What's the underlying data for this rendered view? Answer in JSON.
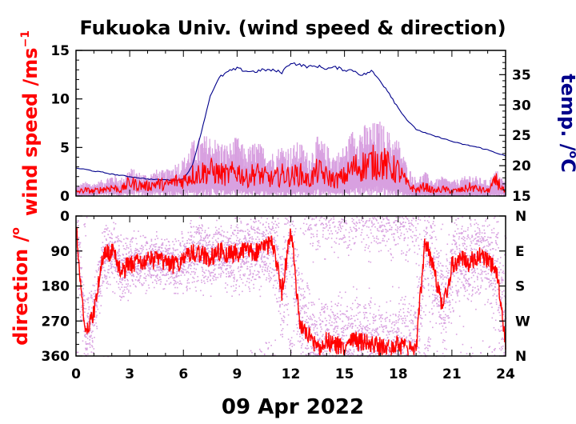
{
  "colors": {
    "wind_mean": "#ff0000",
    "wind_range": "#d8a0e0",
    "temperature": "#00008b",
    "axis": "#000000"
  },
  "chart_data": [
    {
      "type": "line",
      "panel": "top",
      "title": "Fukuoka Univ. (wind speed & direction)",
      "ylabel": "wind speed /ms",
      "ylabel_super": "−1",
      "y2label": "temp. /",
      "y2label_unit": "C",
      "ylim": [
        0,
        15
      ],
      "y2lim": [
        15,
        39
      ],
      "xlim": [
        0,
        24
      ],
      "yticks": [
        0,
        5,
        10,
        15
      ],
      "y2ticks": [
        15,
        20,
        25,
        30,
        35
      ],
      "series": [
        {
          "role": "wind speed (mean)",
          "color": "#ff0000",
          "x": [
            0,
            0.5,
            1,
            1.5,
            2,
            2.5,
            3,
            3.5,
            4,
            4.5,
            5,
            5.5,
            6,
            6.5,
            7,
            7.5,
            8,
            8.5,
            9,
            9.5,
            10,
            10.5,
            11,
            11.5,
            12,
            12.5,
            13,
            13.5,
            14,
            14.5,
            15,
            15.5,
            16,
            16.5,
            17,
            17.5,
            18,
            18.5,
            19,
            19.5,
            20,
            20.5,
            21,
            21.5,
            22,
            22.5,
            23,
            23.5,
            24
          ],
          "values": [
            0.4,
            0.6,
            0.5,
            0.7,
            0.9,
            0.6,
            1.4,
            1.1,
            1.0,
            1.3,
            1.1,
            1.5,
            1.6,
            2.2,
            2.4,
            2.6,
            2.3,
            2.1,
            2.6,
            1.8,
            2.4,
            2.0,
            1.7,
            2.2,
            2.0,
            2.3,
            1.5,
            2.6,
            2.0,
            1.6,
            2.0,
            2.9,
            3.1,
            3.4,
            3.6,
            2.9,
            2.6,
            1.2,
            0.6,
            1.0,
            0.5,
            0.7,
            0.5,
            0.6,
            0.9,
            0.7,
            0.5,
            1.6,
            0.3
          ]
        },
        {
          "role": "wind speed (range)",
          "color": "#d8a0e0",
          "x": [
            0,
            0.5,
            1,
            1.5,
            2,
            2.5,
            3,
            3.5,
            4,
            4.5,
            5,
            5.5,
            6,
            6.5,
            7,
            7.5,
            8,
            8.5,
            9,
            9.5,
            10,
            10.5,
            11,
            11.5,
            12,
            12.5,
            13,
            13.5,
            14,
            14.5,
            15,
            15.5,
            16,
            16.5,
            17,
            17.5,
            18,
            18.5,
            19,
            19.5,
            20,
            20.5,
            21,
            21.5,
            22,
            22.5,
            23,
            23.5,
            24
          ],
          "upper": [
            0.9,
            1.3,
            1.2,
            1.5,
            2.0,
            1.6,
            2.6,
            2.2,
            2.0,
            2.4,
            2.3,
            3.0,
            3.4,
            5.0,
            5.4,
            5.6,
            5.0,
            4.7,
            5.4,
            4.2,
            5.0,
            4.5,
            4.0,
            4.7,
            4.5,
            5.0,
            3.8,
            5.4,
            4.6,
            3.8,
            4.6,
            6.2,
            6.4,
            6.6,
            6.8,
            5.8,
            5.2,
            2.8,
            1.6,
            2.2,
            1.4,
            1.8,
            1.4,
            1.6,
            2.0,
            1.7,
            1.4,
            2.4,
            1.2
          ],
          "lower": [
            0.1,
            0.2,
            0.2,
            0.3,
            0.4,
            0.2,
            0.6,
            0.5,
            0.4,
            0.6,
            0.5,
            0.6,
            0.6,
            0.7,
            0.8,
            0.9,
            0.7,
            0.6,
            0.8,
            0.5,
            0.7,
            0.6,
            0.5,
            0.6,
            0.6,
            0.7,
            0.4,
            0.8,
            0.6,
            0.5,
            0.6,
            0.9,
            1.0,
            1.1,
            1.2,
            0.9,
            0.7,
            0.3,
            0.1,
            0.2,
            0.1,
            0.2,
            0.1,
            0.1,
            0.2,
            0.2,
            0.1,
            0.4,
            0.1
          ]
        },
        {
          "role": "temperature",
          "axis": "right",
          "color": "#00008b",
          "x": [
            0,
            0.5,
            1,
            1.5,
            2,
            2.5,
            3,
            3.5,
            4,
            4.5,
            5,
            5.5,
            6,
            6.5,
            7,
            7.5,
            8,
            8.5,
            9,
            9.5,
            10,
            10.5,
            11,
            11.5,
            12,
            12.5,
            13,
            13.5,
            14,
            14.5,
            15,
            15.5,
            16,
            16.5,
            17,
            17.5,
            18,
            18.5,
            19,
            19.5,
            20,
            20.5,
            21,
            21.5,
            22,
            22.5,
            23,
            23.5,
            24
          ],
          "values": [
            19.6,
            19.4,
            19.1,
            18.9,
            18.6,
            18.4,
            18.2,
            18.0,
            17.8,
            17.7,
            17.7,
            17.6,
            17.8,
            20.0,
            25.5,
            31.5,
            34.5,
            35.5,
            36.0,
            35.6,
            35.5,
            35.8,
            35.7,
            35.4,
            37.0,
            36.6,
            36.3,
            36.4,
            36.0,
            36.2,
            35.8,
            35.7,
            34.9,
            35.6,
            34.0,
            32.0,
            29.5,
            27.5,
            26.0,
            25.4,
            24.9,
            24.5,
            24.0,
            23.6,
            23.3,
            23.0,
            22.6,
            22.1,
            21.6
          ]
        }
      ]
    },
    {
      "type": "scatter",
      "panel": "bottom",
      "ylabel": "direction /",
      "xlabel": "09 Apr 2022",
      "xlim": [
        0,
        24
      ],
      "xticks": [
        0,
        3,
        6,
        9,
        12,
        15,
        18,
        21,
        24
      ],
      "ylim": [
        0,
        360
      ],
      "yticks": [
        0,
        90,
        180,
        270,
        360
      ],
      "y2ticklabels": [
        "N",
        "E",
        "S",
        "W",
        "N"
      ],
      "series": [
        {
          "role": "wind direction (mean)",
          "color": "#ff0000",
          "x": [
            0,
            0.5,
            1,
            1.5,
            2,
            2.5,
            3,
            3.5,
            4,
            4.5,
            5,
            5.5,
            6,
            6.5,
            7,
            7.5,
            8,
            8.5,
            9,
            9.5,
            10,
            10.5,
            11,
            11.5,
            12,
            12.5,
            13,
            13.5,
            14,
            14.5,
            15,
            15.5,
            16,
            16.5,
            17,
            17.5,
            18,
            18.5,
            19,
            19.5,
            20,
            20.5,
            21,
            21.5,
            22,
            22.5,
            23,
            23.5,
            24
          ],
          "values": [
            20,
            300,
            250,
            100,
            90,
            140,
            125,
            120,
            115,
            115,
            120,
            125,
            115,
            95,
            100,
            110,
            90,
            100,
            95,
            90,
            95,
            80,
            70,
            200,
            30,
            280,
            310,
            340,
            320,
            330,
            340,
            320,
            325,
            330,
            335,
            340,
            330,
            340,
            345,
            60,
            140,
            240,
            130,
            110,
            120,
            100,
            110,
            140,
            330
          ]
        },
        {
          "role": "wind direction (scatter)",
          "color": "#d8a0e0",
          "x": [
            0,
            0.5,
            1,
            1.5,
            2,
            2.5,
            3,
            3.5,
            4,
            4.5,
            5,
            5.5,
            6,
            6.5,
            7,
            7.5,
            8,
            8.5,
            9,
            9.5,
            10,
            10.5,
            11,
            11.5,
            12,
            12.5,
            13,
            13.5,
            14,
            14.5,
            15,
            15.5,
            16,
            16.5,
            17,
            17.5,
            18,
            18.5,
            19,
            19.5,
            20,
            20.5,
            21,
            21.5,
            22,
            22.5,
            23,
            23.5,
            24
          ],
          "spread": [
            100,
            100,
            90,
            80,
            80,
            70,
            70,
            65,
            65,
            60,
            60,
            60,
            70,
            80,
            80,
            75,
            80,
            80,
            85,
            90,
            90,
            100,
            110,
            130,
            150,
            140,
            130,
            110,
            110,
            120,
            130,
            120,
            110,
            110,
            100,
            110,
            120,
            130,
            140,
            150,
            150,
            140,
            130,
            120,
            110,
            110,
            120,
            140,
            150
          ]
        }
      ]
    }
  ]
}
